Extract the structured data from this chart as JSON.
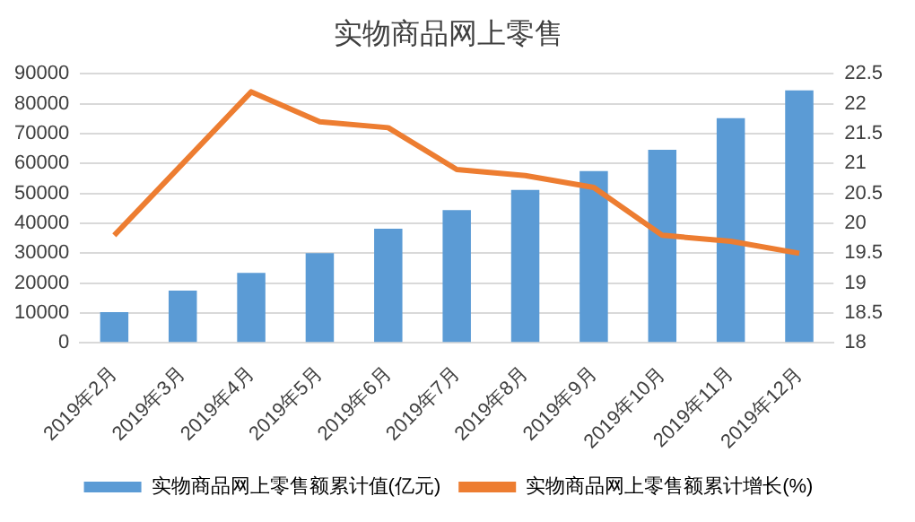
{
  "chart_data": {
    "type": "bar",
    "title": "实物商品网上零售",
    "categories": [
      "2019年2月",
      "2019年3月",
      "2019年4月",
      "2019年5月",
      "2019年6月",
      "2019年7月",
      "2019年8月",
      "2019年9月",
      "2019年10月",
      "2019年11月",
      "2019年12月"
    ],
    "series": [
      {
        "name": "实物商品网上零售额累计值(亿元)",
        "color": "#5b9bd5",
        "values": [
          10300,
          17500,
          23400,
          30000,
          38200,
          44400,
          51200,
          57500,
          64600,
          75200,
          84500
        ]
      },
      {
        "name": "实物商品网上零售额累计增长(%)",
        "type": "line",
        "axis": "y2",
        "color": "#ed7d31",
        "marker": "none",
        "values": [
          19.8,
          21.0,
          22.2,
          21.7,
          21.6,
          20.9,
          20.8,
          20.6,
          19.8,
          19.7,
          19.5
        ]
      }
    ],
    "ylim": [
      0,
      90000
    ],
    "yticks": [
      0,
      10000,
      20000,
      30000,
      40000,
      50000,
      60000,
      70000,
      80000,
      90000
    ],
    "y2lim": [
      18,
      22.5
    ],
    "y2ticks": [
      18,
      18.5,
      19,
      19.5,
      20,
      20.5,
      21,
      21.5,
      22,
      22.5
    ],
    "grid": "y",
    "legend": "bottom"
  }
}
